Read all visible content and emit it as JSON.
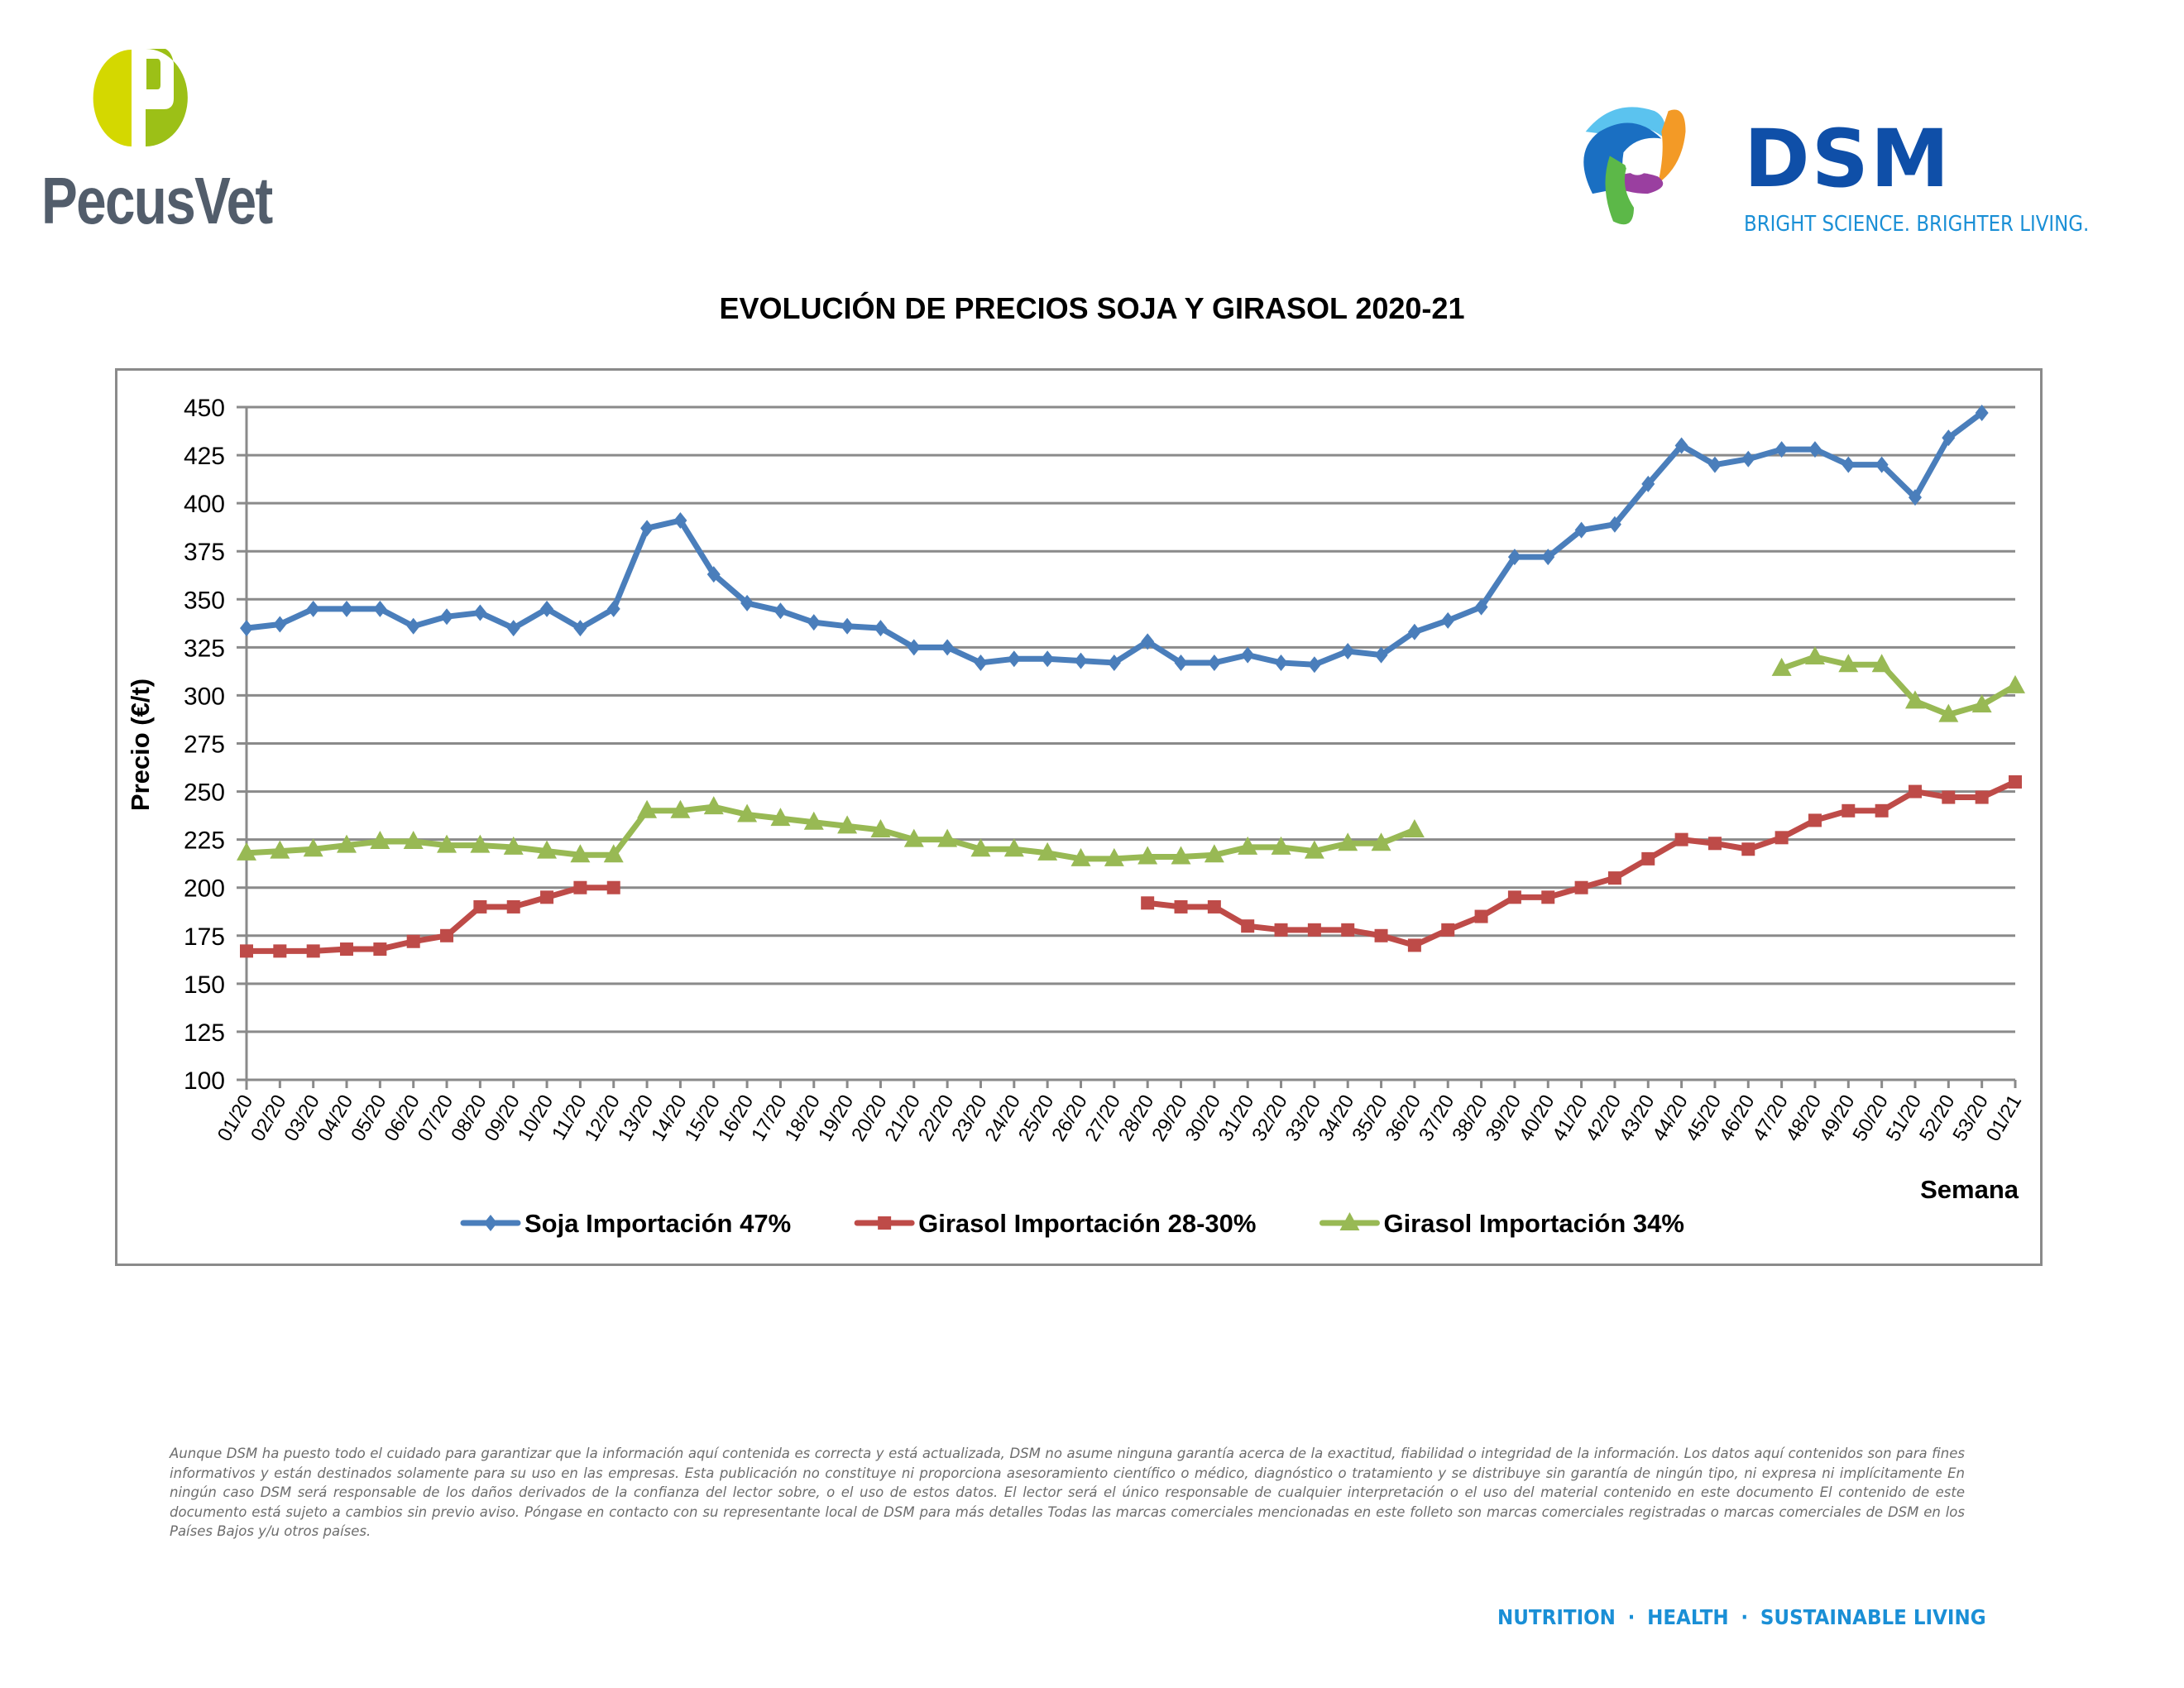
{
  "header": {
    "left_logo_text": "PecusVet",
    "right_logo_text": "DSM",
    "right_logo_tagline": "BRIGHT SCIENCE. BRIGHTER LIVING."
  },
  "chart_data": {
    "type": "line",
    "title": "EVOLUCIÓN DE PRECIOS SOJA Y GIRASOL 2020-21",
    "xlabel": "Semana",
    "ylabel": "Precio (€/t)",
    "ylim": [
      100,
      450
    ],
    "yticks": [
      100,
      125,
      150,
      175,
      200,
      225,
      250,
      275,
      300,
      325,
      350,
      375,
      400,
      425,
      450
    ],
    "grid": true,
    "legend_position": "bottom",
    "categories": [
      "01/20",
      "02/20",
      "03/20",
      "04/20",
      "05/20",
      "06/20",
      "07/20",
      "08/20",
      "09/20",
      "10/20",
      "11/20",
      "12/20",
      "13/20",
      "14/20",
      "15/20",
      "16/20",
      "17/20",
      "18/20",
      "19/20",
      "20/20",
      "21/20",
      "22/20",
      "23/20",
      "24/20",
      "25/20",
      "26/20",
      "27/20",
      "28/20",
      "29/20",
      "30/20",
      "31/20",
      "32/20",
      "33/20",
      "34/20",
      "35/20",
      "36/20",
      "37/20",
      "38/20",
      "39/20",
      "40/20",
      "41/20",
      "42/20",
      "43/20",
      "44/20",
      "45/20",
      "46/20",
      "47/20",
      "48/20",
      "49/20",
      "50/20",
      "51/20",
      "52/20",
      "53/20",
      "01/21"
    ],
    "series": [
      {
        "name": "Soja Importación 47%",
        "color": "#4a7ebb",
        "marker": "diamond",
        "values": [
          335,
          337,
          345,
          345,
          345,
          336,
          341,
          343,
          335,
          345,
          335,
          345,
          387,
          391,
          363,
          348,
          344,
          338,
          336,
          335,
          325,
          325,
          317,
          319,
          319,
          318,
          317,
          328,
          317,
          317,
          321,
          317,
          316,
          323,
          321,
          333,
          339,
          346,
          372,
          372,
          386,
          389,
          410,
          430,
          420,
          423,
          428,
          428,
          420,
          420,
          403,
          434,
          447,
          null
        ]
      },
      {
        "name": "Girasol Importación 28-30%",
        "color": "#be4b48",
        "marker": "square",
        "values": [
          167,
          167,
          167,
          168,
          168,
          172,
          175,
          190,
          190,
          195,
          200,
          200,
          null,
          null,
          null,
          null,
          null,
          null,
          null,
          null,
          null,
          null,
          null,
          null,
          null,
          null,
          null,
          192,
          190,
          190,
          180,
          178,
          178,
          178,
          175,
          170,
          178,
          185,
          195,
          195,
          200,
          205,
          215,
          225,
          223,
          220,
          226,
          235,
          240,
          240,
          250,
          247,
          247,
          255
        ]
      },
      {
        "name": "Girasol Importación 34%",
        "color": "#98b954",
        "marker": "triangle",
        "values": [
          218,
          219,
          220,
          222,
          224,
          224,
          222,
          222,
          221,
          219,
          217,
          217,
          240,
          240,
          242,
          238,
          236,
          234,
          232,
          230,
          225,
          225,
          220,
          220,
          218,
          215,
          215,
          216,
          216,
          217,
          221,
          221,
          219,
          223,
          223,
          230,
          null,
          null,
          null,
          null,
          null,
          null,
          null,
          null,
          null,
          null,
          314,
          320,
          316,
          316,
          297,
          290,
          295,
          305
        ]
      }
    ]
  },
  "disclaimer": "Aunque DSM ha puesto todo el cuidado para garantizar que la información aquí contenida es correcta y está actualizada, DSM no asume ninguna garantía acerca de la exactitud, fiabilidad o integridad de la información. Los datos aquí contenidos son para fines informativos y están destinados solamente para su uso en las empresas. Esta publicación no constituye ni proporciona asesoramiento científico o médico, diagnóstico o tratamiento y se distribuye sin garantía de ningún tipo, ni expresa ni implícitamente En ningún caso DSM será responsable de los daños derivados de la confianza del lector sobre, o el uso de estos datos. El lector será el único responsable de cualquier interpretación o el uso del material contenido en este documento El contenido de este documento está sujeto a cambios sin previo aviso. Póngase en contacto con su representante local de DSM para más detalles Todas las marcas comerciales mencionadas en este folleto son marcas comerciales registradas o marcas comerciales de DSM en los Países Bajos y/u otros países.",
  "footer": {
    "items": [
      "NUTRITION",
      "HEALTH",
      "SUSTAINABLE LIVING"
    ],
    "separator": "·",
    "color": "#1a8fd6"
  }
}
